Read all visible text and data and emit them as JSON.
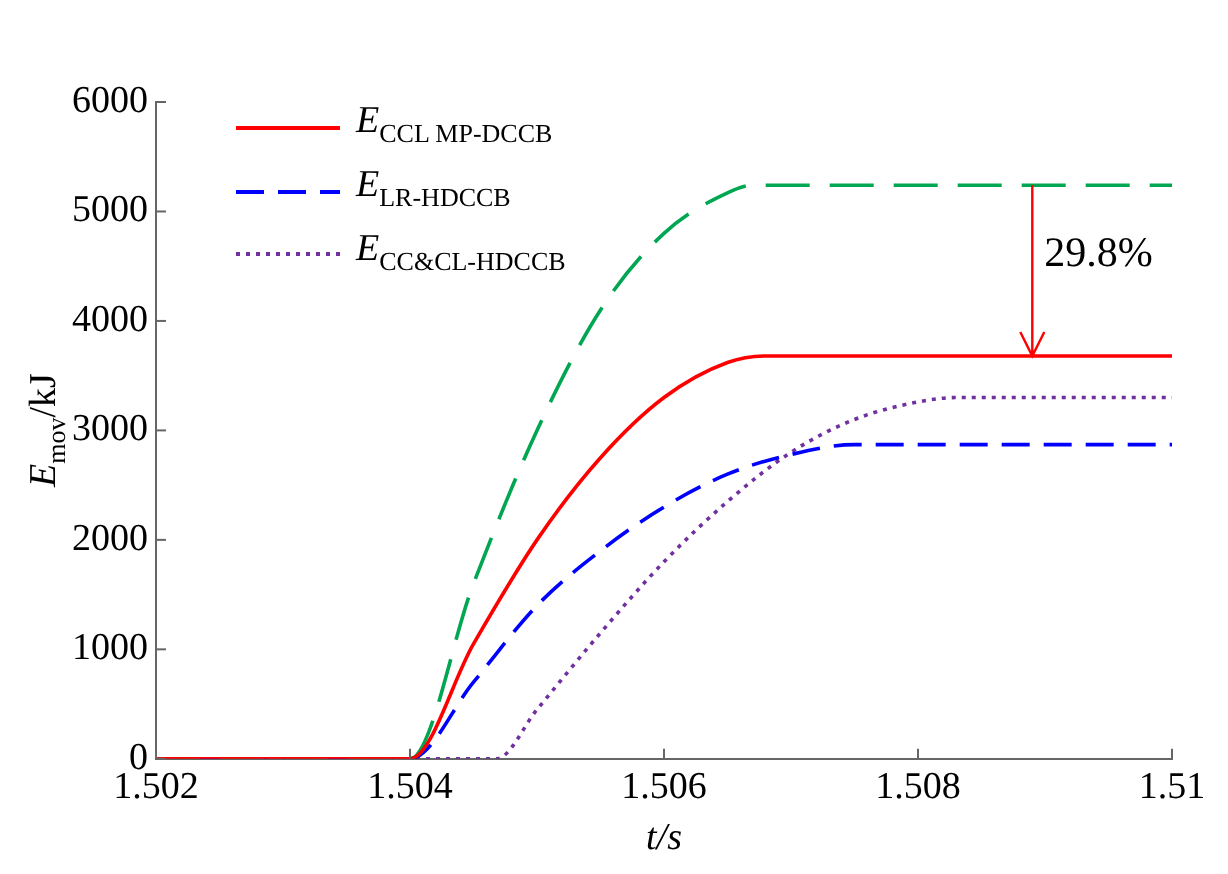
{
  "chart_data": {
    "type": "line",
    "xlabel": "t/s",
    "ylabel": "E$_{mov}$/kJ",
    "xlim": [
      1.502,
      1.51
    ],
    "xticks": [
      1.502,
      1.504,
      1.506,
      1.508,
      1.51
    ],
    "ylim": [
      0,
      6000
    ],
    "yticks": [
      0,
      1000,
      2000,
      3000,
      4000,
      5000,
      6000
    ],
    "grid": false,
    "legend": "top left",
    "marker": "none",
    "series": [
      {
        "name": "E$_{CCL MP-DCCB}$",
        "color": "#ff0000",
        "line_style": "solid",
        "x": [
          1.502,
          1.504,
          1.5045,
          1.505,
          1.5055,
          1.506,
          1.5065,
          1.5068,
          1.51
        ],
        "values": [
          0,
          0,
          1050,
          2000,
          2750,
          3300,
          3620,
          3680,
          3680
        ]
      },
      {
        "color": "#00a651",
        "line_style": "dashed",
        "x": [
          1.502,
          1.504,
          1.5045,
          1.505,
          1.5055,
          1.506,
          1.5065,
          1.5067,
          1.51
        ],
        "values": [
          0,
          0,
          1600,
          3000,
          4100,
          4800,
          5170,
          5240,
          5240
        ]
      },
      {
        "name": "E$_{LR-HDCCB}$",
        "color": "#0000ff",
        "line_style": "dashed",
        "x": [
          1.502,
          1.504,
          1.5045,
          1.505,
          1.5055,
          1.506,
          1.5065,
          1.507,
          1.5075,
          1.51
        ],
        "values": [
          0,
          0,
          700,
          1400,
          1900,
          2300,
          2600,
          2780,
          2870,
          2870
        ]
      },
      {
        "name": "E$_{CC&CL-HDCCB}$",
        "color": "#7030a0",
        "line_style": "dotted",
        "x": [
          1.502,
          1.50468,
          1.505,
          1.5055,
          1.506,
          1.5065,
          1.507,
          1.5075,
          1.508,
          1.5083,
          1.51
        ],
        "values": [
          0,
          0,
          450,
          1150,
          1800,
          2350,
          2800,
          3100,
          3260,
          3300,
          3300
        ]
      }
    ],
    "annotations": [
      {
        "text": "29.8%",
        "x": 1.5089,
        "y": 3680
      }
    ]
  }
}
